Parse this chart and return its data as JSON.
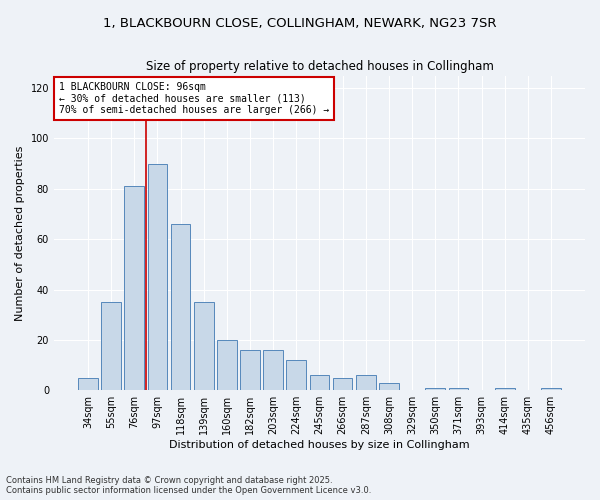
{
  "title_line1": "1, BLACKBOURN CLOSE, COLLINGHAM, NEWARK, NG23 7SR",
  "title_line2": "Size of property relative to detached houses in Collingham",
  "xlabel": "Distribution of detached houses by size in Collingham",
  "ylabel": "Number of detached properties",
  "categories": [
    "34sqm",
    "55sqm",
    "76sqm",
    "97sqm",
    "118sqm",
    "139sqm",
    "160sqm",
    "182sqm",
    "203sqm",
    "224sqm",
    "245sqm",
    "266sqm",
    "287sqm",
    "308sqm",
    "329sqm",
    "350sqm",
    "371sqm",
    "393sqm",
    "414sqm",
    "435sqm",
    "456sqm"
  ],
  "values": [
    5,
    35,
    81,
    90,
    66,
    35,
    20,
    16,
    16,
    12,
    6,
    5,
    6,
    3,
    0,
    1,
    1,
    0,
    1,
    0,
    1
  ],
  "bar_color": "#c8d8e8",
  "bar_edge_color": "#5588bb",
  "vline_x_index": 3,
  "vline_color": "#cc0000",
  "annotation_text": "1 BLACKBOURN CLOSE: 96sqm\n← 30% of detached houses are smaller (113)\n70% of semi-detached houses are larger (266) →",
  "annotation_box_color": "#ffffff",
  "annotation_box_edgecolor": "#cc0000",
  "ylim": [
    0,
    125
  ],
  "yticks": [
    0,
    20,
    40,
    60,
    80,
    100,
    120
  ],
  "background_color": "#eef2f7",
  "grid_color": "#ffffff",
  "footnote": "Contains HM Land Registry data © Crown copyright and database right 2025.\nContains public sector information licensed under the Open Government Licence v3.0."
}
